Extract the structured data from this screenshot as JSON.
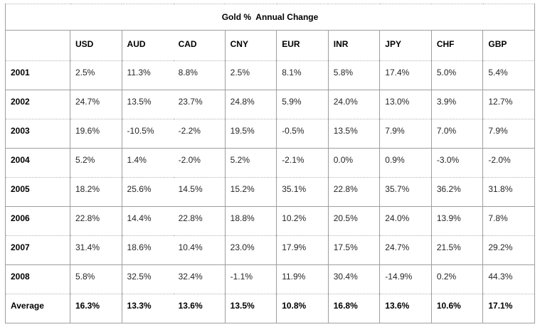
{
  "colors": {
    "background": "#ffffff",
    "border_solid": "#9e9e9e",
    "border_dotted": "#b4b4b4",
    "text": "#000000",
    "text_data": "#262626"
  },
  "chart_data": {
    "type": "table",
    "title": "Gold %  Annual Change",
    "columns": [
      "",
      "USD",
      "AUD",
      "CAD",
      "CNY",
      "EUR",
      "INR",
      "JPY",
      "CHF",
      "GBP"
    ],
    "rows": [
      {
        "label": "2001",
        "bold": false,
        "values": [
          "2.5%",
          "11.3%",
          "8.8%",
          "2.5%",
          "8.1%",
          "5.8%",
          "17.4%",
          "5.0%",
          "5.4%"
        ]
      },
      {
        "label": "2002",
        "bold": false,
        "values": [
          "24.7%",
          "13.5%",
          "23.7%",
          "24.8%",
          "5.9%",
          "24.0%",
          "13.0%",
          "3.9%",
          "12.7%"
        ]
      },
      {
        "label": "2003",
        "bold": false,
        "values": [
          "19.6%",
          "-10.5%",
          "-2.2%",
          "19.5%",
          "-0.5%",
          "13.5%",
          "7.9%",
          "7.0%",
          "7.9%"
        ]
      },
      {
        "label": "2004",
        "bold": false,
        "values": [
          "5.2%",
          "1.4%",
          "-2.0%",
          "5.2%",
          "-2.1%",
          "0.0%",
          "0.9%",
          "-3.0%",
          "-2.0%"
        ]
      },
      {
        "label": "2005",
        "bold": false,
        "values": [
          "18.2%",
          "25.6%",
          "14.5%",
          "15.2%",
          "35.1%",
          "22.8%",
          "35.7%",
          "36.2%",
          "31.8%"
        ]
      },
      {
        "label": "2006",
        "bold": false,
        "values": [
          "22.8%",
          "14.4%",
          "22.8%",
          "18.8%",
          "10.2%",
          "20.5%",
          "24.0%",
          "13.9%",
          "7.8%"
        ]
      },
      {
        "label": "2007",
        "bold": false,
        "values": [
          "31.4%",
          "18.6%",
          "10.4%",
          "23.0%",
          "17.9%",
          "17.5%",
          "24.7%",
          "21.5%",
          "29.2%"
        ]
      },
      {
        "label": "2008",
        "bold": false,
        "values": [
          "5.8%",
          "32.5%",
          "32.4%",
          "-1.1%",
          "11.9%",
          "30.4%",
          "-14.9%",
          "0.2%",
          "44.3%"
        ]
      },
      {
        "label": "Average",
        "bold": true,
        "values": [
          "16.3%",
          "13.3%",
          "13.6%",
          "13.5%",
          "10.8%",
          "16.8%",
          "13.6%",
          "10.6%",
          "17.1%"
        ]
      }
    ]
  }
}
